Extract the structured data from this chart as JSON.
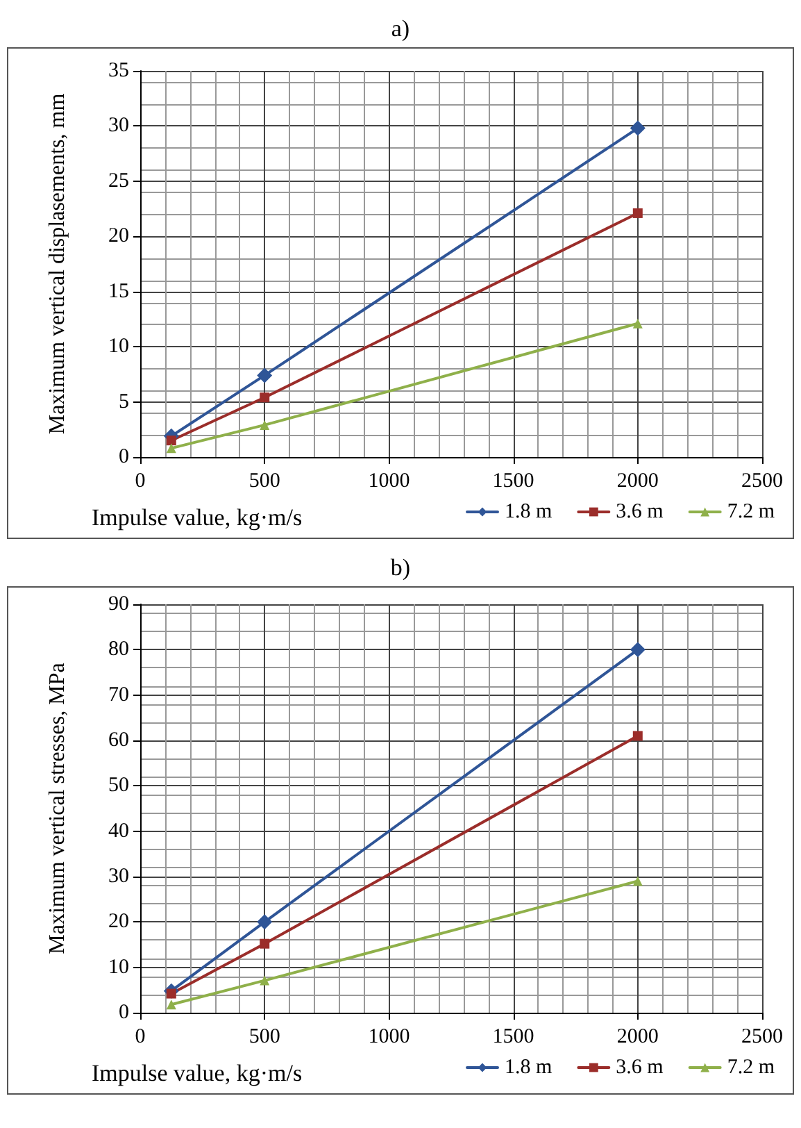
{
  "chart_data": [
    {
      "type": "line",
      "title": "a)",
      "xlabel": "Impulse value, kg·m/s",
      "ylabel": "Maximum vertical displasements, mm",
      "x": [
        125,
        500,
        2000
      ],
      "series": [
        {
          "name": "1.8 m",
          "color": "#2f5597",
          "marker": "diamond",
          "values": [
            1.9,
            7.4,
            29.8
          ]
        },
        {
          "name": "3.6 m",
          "color": "#9b2d2a",
          "marker": "square",
          "values": [
            1.5,
            5.4,
            22.1
          ]
        },
        {
          "name": "7.2 m",
          "color": "#8fb04a",
          "marker": "triangle",
          "values": [
            0.8,
            2.9,
            12.1
          ]
        }
      ],
      "xlim": [
        0,
        2500
      ],
      "xticks": [
        0,
        500,
        1000,
        1500,
        2000,
        2500
      ],
      "ylim": [
        0,
        35
      ],
      "yticks": [
        0,
        5,
        10,
        15,
        20,
        25,
        30,
        35
      ],
      "grid": true,
      "legend": "bottom right",
      "line_style": "solid"
    },
    {
      "type": "line",
      "title": "b)",
      "xlabel": "Impulse value, kg·m/s",
      "ylabel": "Maximum vertical stresses, MPa",
      "x": [
        125,
        500,
        2000
      ],
      "series": [
        {
          "name": "1.8 m",
          "color": "#2f5597",
          "marker": "diamond",
          "values": [
            4.8,
            20,
            80
          ]
        },
        {
          "name": "3.6 m",
          "color": "#9b2d2a",
          "marker": "square",
          "values": [
            4.2,
            15.2,
            61
          ]
        },
        {
          "name": "7.2 m",
          "color": "#8fb04a",
          "marker": "triangle",
          "values": [
            1.8,
            7.1,
            29
          ]
        }
      ],
      "xlim": [
        0,
        2500
      ],
      "xticks": [
        0,
        500,
        1000,
        1500,
        2000,
        2500
      ],
      "ylim": [
        0,
        90
      ],
      "yticks": [
        0,
        10,
        20,
        30,
        40,
        50,
        60,
        70,
        80,
        90
      ],
      "grid": true,
      "legend": "bottom right",
      "line_style": "solid"
    }
  ]
}
